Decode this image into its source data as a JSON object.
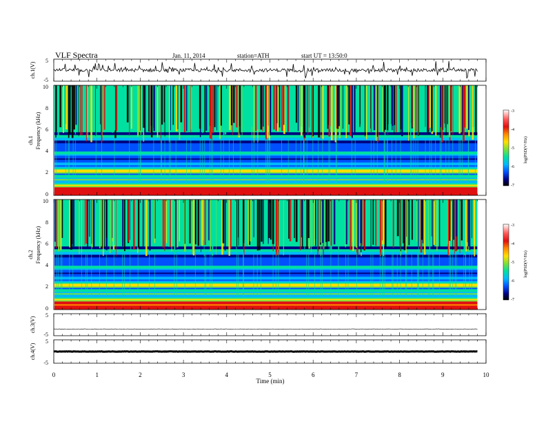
{
  "header": {
    "title": "VLF  Spectra",
    "date": "Jan. 11, 2014",
    "station": "station=ATH",
    "start": "start  UT =  13:50:0"
  },
  "colors": {
    "colormap": [
      "#ffffff",
      "#ff5a5a",
      "#e01010",
      "#ff8a00",
      "#ffe000",
      "#7de03a",
      "#00e0a0",
      "#00b8ff",
      "#0050ff",
      "#000080",
      "#000000"
    ],
    "trace": "#000000"
  },
  "chart_data": [
    {
      "type": "line",
      "name": "ch1-waveform",
      "ylabel": "ch.1(V)",
      "ylim": [
        -5,
        5
      ],
      "yticks": [
        "5",
        "-5"
      ],
      "x_range": [
        0,
        9.8
      ],
      "trend": "noisy trace near 0 V with frequent spikes"
    },
    {
      "type": "heatmap",
      "name": "ch1-spectrogram",
      "ylabel_channel": "ch.1",
      "ylabel": "Frequency  (kHz)",
      "ylim": [
        0,
        10
      ],
      "yticks": [
        "0",
        "2",
        "4",
        "6",
        "8",
        "10"
      ],
      "x_range": [
        0,
        9.8
      ],
      "colorbar": {
        "label": "log(PSD(V²/Hz)",
        "range": [
          -7,
          -3
        ],
        "ticks": [
          "-3",
          "-4",
          "-5",
          "-6",
          "-7"
        ]
      }
    },
    {
      "type": "heatmap",
      "name": "ch2-spectrogram",
      "ylabel_channel": "ch.2",
      "ylabel": "Frequency  (kHz)",
      "ylim": [
        0,
        10
      ],
      "yticks": [
        "0",
        "2",
        "4",
        "6",
        "8",
        "10"
      ],
      "x_range": [
        0,
        9.8
      ],
      "colorbar": {
        "label": "log(PSD(V²/Hz)",
        "range": [
          -7,
          -3
        ],
        "ticks": [
          "-3",
          "-4",
          "-5",
          "-6",
          "-7"
        ]
      }
    },
    {
      "type": "line",
      "name": "ch3-waveform",
      "ylabel": "ch.3(V)",
      "ylim": [
        -5,
        5
      ],
      "yticks": [
        "5",
        "-5"
      ],
      "x_range": [
        0,
        9.8
      ],
      "trend": "flat thin trace near -2 V"
    },
    {
      "type": "line",
      "name": "ch4-waveform",
      "ylabel": "ch.4(V)",
      "ylim": [
        -5,
        5
      ],
      "yticks": [
        "5",
        "-5"
      ],
      "x_range": [
        0,
        9.8
      ],
      "trend": "flat thick trace near 0 V"
    }
  ],
  "xaxis": {
    "label": "Time  (min)",
    "range": [
      0,
      10
    ],
    "ticks": [
      "0",
      "1",
      "2",
      "3",
      "4",
      "5",
      "6",
      "7",
      "8",
      "9",
      "10"
    ]
  }
}
